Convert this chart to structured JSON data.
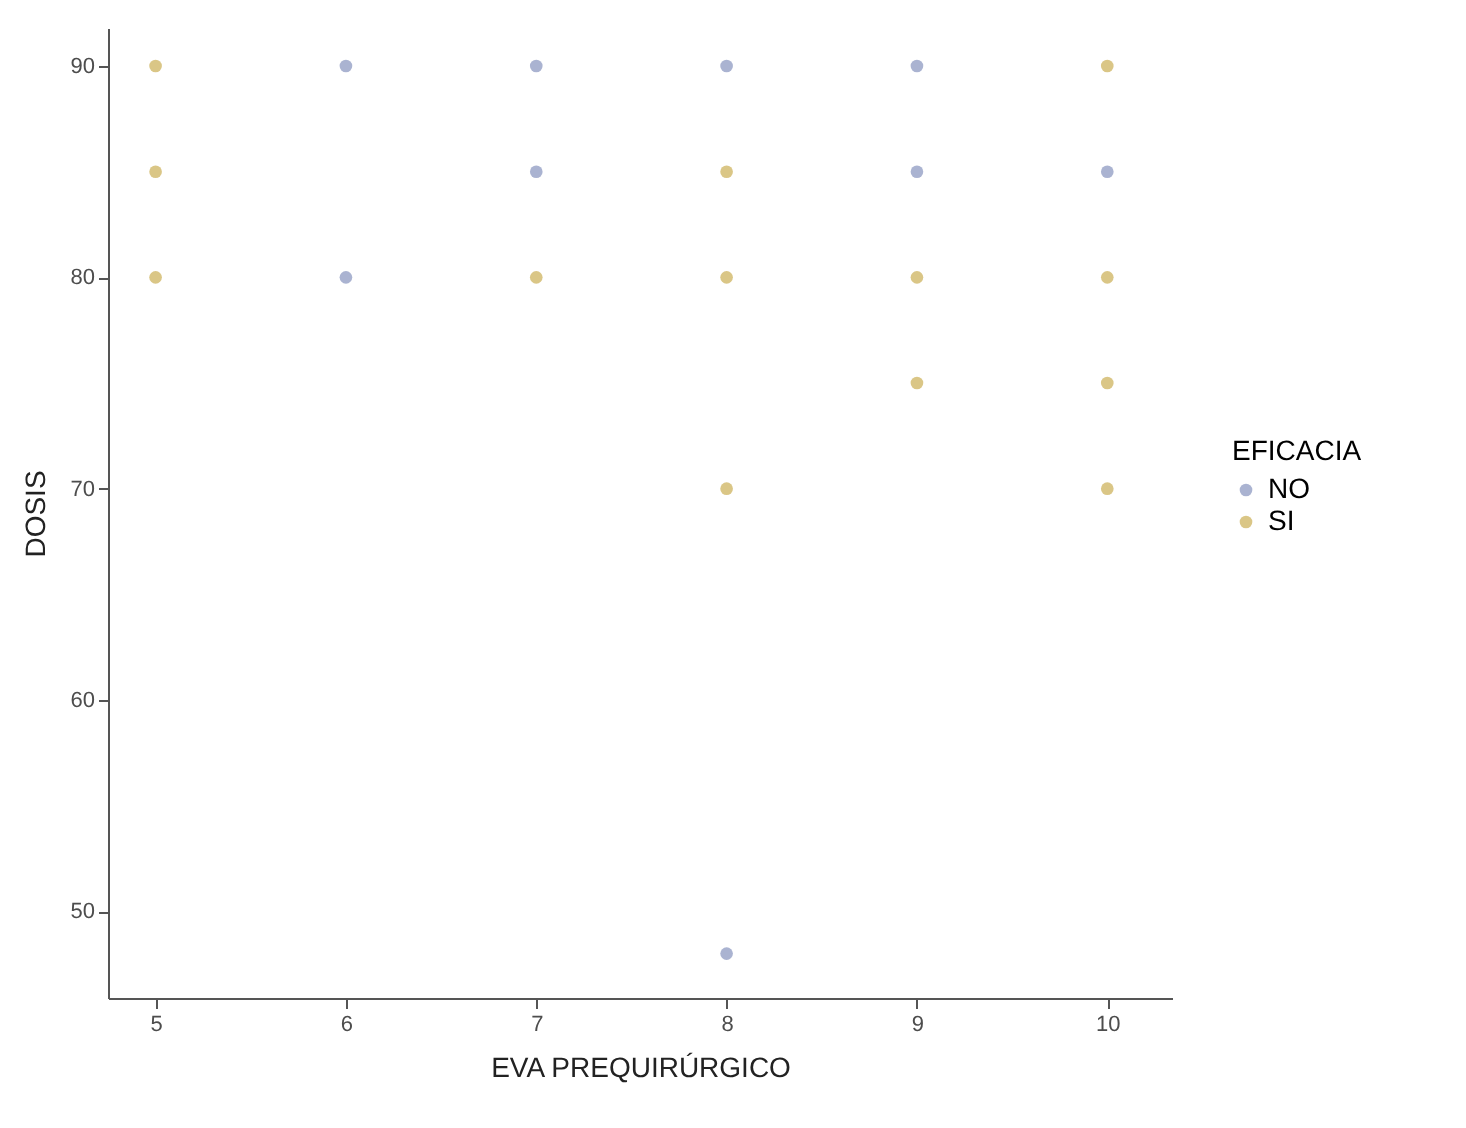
{
  "chart_data": {
    "type": "scatter",
    "xlabel": "EVA PREQUIRÚRGICO",
    "ylabel": "DOSIS",
    "legend_title": "EFICACIA",
    "legend": "right",
    "grid": false,
    "marker": "circle",
    "xlim": [
      4.75,
      10.34
    ],
    "xticks": [
      5,
      6,
      7,
      8,
      9,
      10
    ],
    "ylim": [
      45.9,
      91.8
    ],
    "yticks": [
      50,
      60,
      70,
      80,
      90
    ],
    "series": [
      {
        "name": "NO",
        "color": "#8e99c2",
        "x": [
          6,
          6,
          7,
          7,
          8,
          8,
          9,
          9,
          10
        ],
        "values": [
          90,
          80,
          90,
          85,
          90,
          48,
          90,
          85,
          85
        ]
      },
      {
        "name": "SI",
        "color": "#cdb35e",
        "x": [
          5,
          5,
          5,
          7,
          8,
          8,
          8,
          9,
          9,
          10,
          10,
          10,
          10
        ],
        "values": [
          90,
          85,
          80,
          80,
          85,
          80,
          70,
          80,
          75,
          90,
          80,
          75,
          70
        ]
      }
    ]
  }
}
